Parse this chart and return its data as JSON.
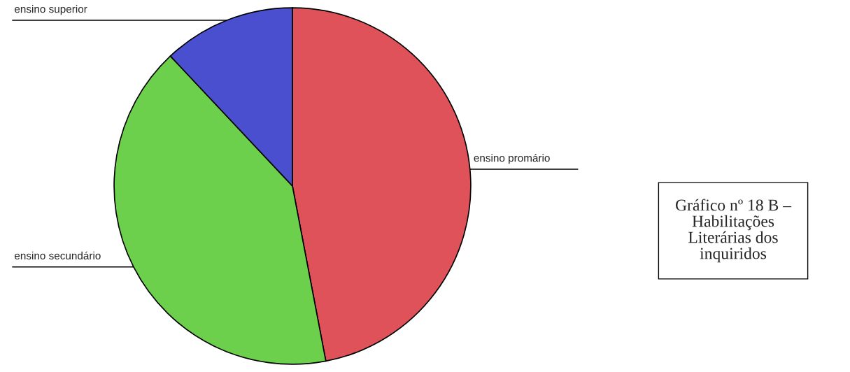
{
  "chart_data": {
    "type": "pie",
    "title": "Gráfico nº 18 B –\nHabilitações\nLiterárias dos\ninquiridos",
    "categories": [
      "ensino promário",
      "ensino secundário",
      "ensino superior"
    ],
    "values": [
      47,
      41,
      12
    ],
    "colors": [
      "#e0525a",
      "#6cd04c",
      "#4a4fd0"
    ]
  }
}
